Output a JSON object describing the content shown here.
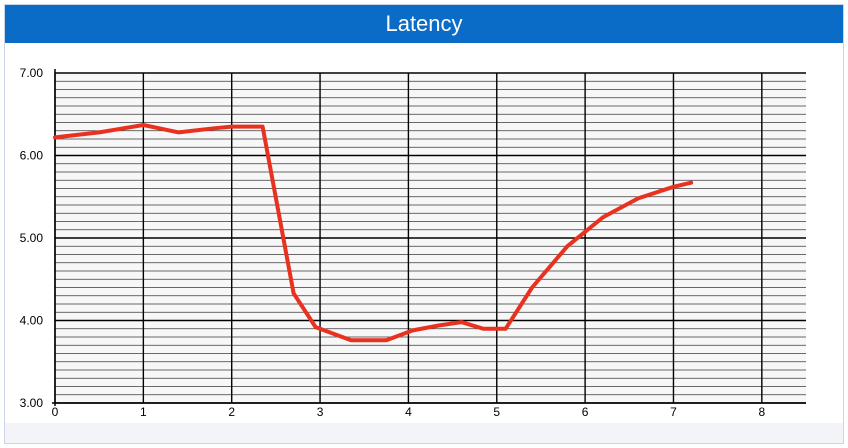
{
  "title": "Latency",
  "colors": {
    "title_bar": "#0a6cc6",
    "line": "#e8321f",
    "major_grid": "#000000",
    "minor_grid": "#3a3a3a",
    "plot_bg": "#f7f7f7"
  },
  "chart_data": {
    "type": "line",
    "title": "Latency",
    "xlabel": "",
    "ylabel": "",
    "xlim": [
      0,
      8.5
    ],
    "ylim": [
      3,
      7
    ],
    "x_ticks": [
      "0",
      "1",
      "2",
      "3",
      "4",
      "5",
      "6",
      "7",
      "8"
    ],
    "y_ticks": [
      "3.00",
      "4.00",
      "5.00",
      "6.00",
      "7.00"
    ],
    "grid": true,
    "series": [
      {
        "x": [
          0,
          0.5,
          1.0,
          1.4,
          1.8,
          2.0,
          2.35,
          2.7,
          2.95,
          3.35,
          3.75,
          4.05,
          4.35,
          4.6,
          4.85,
          5.1,
          5.4,
          5.8,
          6.2,
          6.6,
          7.0,
          7.2
        ],
        "y": [
          6.22,
          6.28,
          6.37,
          6.28,
          6.33,
          6.35,
          6.35,
          4.33,
          3.92,
          3.76,
          3.76,
          3.88,
          3.94,
          3.98,
          3.9,
          3.9,
          4.4,
          4.9,
          5.25,
          5.48,
          5.62,
          5.67
        ]
      }
    ]
  }
}
